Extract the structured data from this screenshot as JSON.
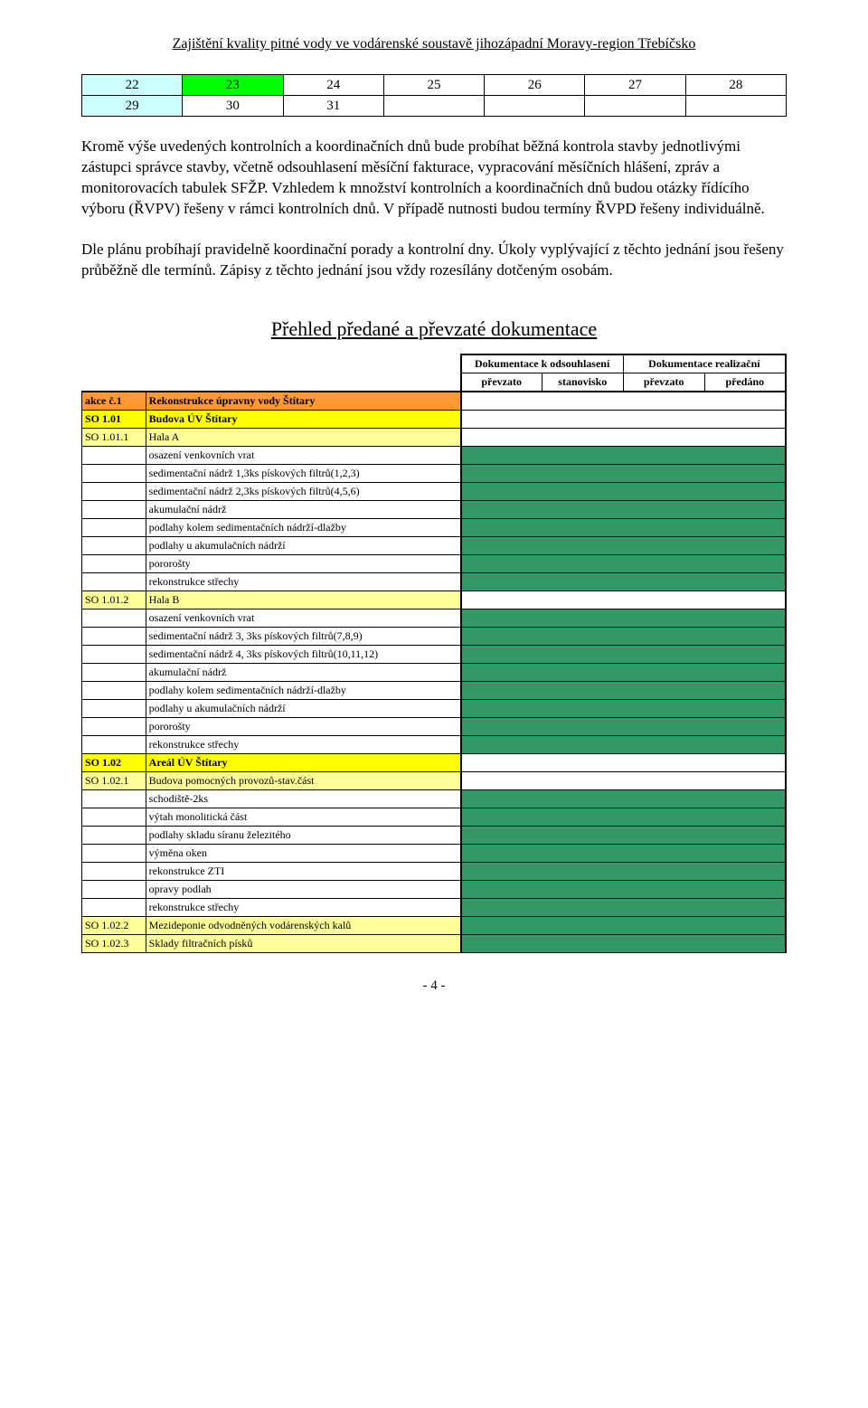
{
  "header": {
    "title": "Zajištění kvality pitné vody ve vodárenské soustavě jihozápadní Moravy-region Třebíčsko"
  },
  "calendar": {
    "rows": [
      {
        "cells": [
          "22",
          "23",
          "24",
          "25",
          "26",
          "27",
          "28"
        ],
        "bg": [
          "#ccffff",
          "#00ff00",
          "",
          "",
          "",
          "",
          ""
        ]
      },
      {
        "cells": [
          "29",
          "30",
          "31",
          "",
          "",
          "",
          ""
        ],
        "bg": [
          "#ccffff",
          "",
          "",
          "",
          "",
          "",
          ""
        ]
      }
    ]
  },
  "paragraphs": [
    "Kromě výše uvedených kontrolních a koordinačních dnů bude probíhat běžná kontrola stavby jednotlivými zástupci správce stavby, včetně odsouhlasení měsíční fakturace, vypracování měsíčních hlášení, zpráv a monitorovacích tabulek SFŽP. Vzhledem k množství kontrolních a koordinačních dnů budou otázky  řídícího výboru (ŘVPV) řešeny v rámci kontrolních dnů. V případě nutnosti budou termíny ŘVPD řešeny individuálně.",
    "Dle plánu probíhají pravidelně koordinační porady a kontrolní dny. Úkoly vyplývající z těchto jednání jsou řešeny průběžně dle termínů. Zápisy z těchto jednání jsou vždy rozesílány dotčeným osobám."
  ],
  "doc_section": {
    "title": "Přehled předané a převzaté dokumentace",
    "header_top": [
      "Dokumentace k odsouhlasení",
      "Dokumentace realizační"
    ],
    "header_sub": [
      "převzato",
      "stanovisko",
      "převzato",
      "předáno"
    ]
  },
  "rows": [
    {
      "code": "akce č.1",
      "name": "Rekonstrukce úpravny vody Štítary",
      "bg": "#ff9933",
      "status_bg": ""
    },
    {
      "code": "SO 1.01",
      "name": "Budova ÚV Štítary",
      "bg": "#ffff00",
      "status_bg": ""
    },
    {
      "code": "SO 1.01.1",
      "name": "Hala A",
      "bg": "#ffff99",
      "status_bg": ""
    },
    {
      "code": "",
      "name": "osazení venkovních vrat",
      "bg": "",
      "status_bg": "#339966"
    },
    {
      "code": "",
      "name": "sedimentační nádrž 1,3ks pískových filtrů(1,2,3)",
      "bg": "",
      "status_bg": "#339966"
    },
    {
      "code": "",
      "name": "sedimentační nádrž 2,3ks pískových filtrů(4,5,6)",
      "bg": "",
      "status_bg": "#339966"
    },
    {
      "code": "",
      "name": "akumulační nádrž",
      "bg": "",
      "status_bg": "#339966"
    },
    {
      "code": "",
      "name": "podlahy kolem sedimentačních nádrží-dlažby",
      "bg": "",
      "status_bg": "#339966"
    },
    {
      "code": "",
      "name": "podlahy u akumulačních nádrží",
      "bg": "",
      "status_bg": "#339966"
    },
    {
      "code": "",
      "name": "pororošty",
      "bg": "",
      "status_bg": "#339966"
    },
    {
      "code": "",
      "name": "rekonstrukce střechy",
      "bg": "",
      "status_bg": "#339966"
    },
    {
      "code": "SO 1.01.2",
      "name": "Hala B",
      "bg": "#ffff99",
      "status_bg": ""
    },
    {
      "code": "",
      "name": "osazení venkovních vrat",
      "bg": "",
      "status_bg": "#339966"
    },
    {
      "code": "",
      "name": "sedimentační nádrž 3, 3ks pískových filtrů(7,8,9)",
      "bg": "",
      "status_bg": "#339966"
    },
    {
      "code": "",
      "name": "sedimentační nádrž 4, 3ks pískových filtrů(10,11,12)",
      "bg": "",
      "status_bg": "#339966"
    },
    {
      "code": "",
      "name": "akumulační nádrž",
      "bg": "",
      "status_bg": "#339966"
    },
    {
      "code": "",
      "name": "podlahy kolem sedimentačních nádrží-dlažby",
      "bg": "",
      "status_bg": "#339966"
    },
    {
      "code": "",
      "name": "podlahy u akumulačních nádrží",
      "bg": "",
      "status_bg": "#339966"
    },
    {
      "code": "",
      "name": "pororošty",
      "bg": "",
      "status_bg": "#339966"
    },
    {
      "code": "",
      "name": "rekonstrukce střechy",
      "bg": "",
      "status_bg": "#339966"
    },
    {
      "code": "SO 1.02",
      "name": "Areál ÚV Štítary",
      "bg": "#ffff00",
      "status_bg": ""
    },
    {
      "code": "SO 1.02.1",
      "name": "Budova pomocných provozů-stav.část",
      "bg": "#ffff99",
      "status_bg": ""
    },
    {
      "code": "",
      "name": "schodiště-2ks",
      "bg": "",
      "status_bg": "#339966"
    },
    {
      "code": "",
      "name": "výtah monolitická část",
      "bg": "",
      "status_bg": "#339966"
    },
    {
      "code": "",
      "name": "podlahy skladu síranu železitého",
      "bg": "",
      "status_bg": "#339966"
    },
    {
      "code": "",
      "name": "výměna oken",
      "bg": "",
      "status_bg": "#339966"
    },
    {
      "code": "",
      "name": "rekonstrukce ZTI",
      "bg": "",
      "status_bg": "#339966"
    },
    {
      "code": "",
      "name": "opravy podlah",
      "bg": "",
      "status_bg": "#339966"
    },
    {
      "code": "",
      "name": "rekonstrukce střechy",
      "bg": "",
      "status_bg": "#339966"
    },
    {
      "code": "SO 1.02.2",
      "name": "Mezideponie odvodněných vodárenských kalů",
      "bg": "#ffff99",
      "status_bg": "#339966"
    },
    {
      "code": "SO 1.02.3",
      "name": "Sklady filtračních písků",
      "bg": "#ffff99",
      "status_bg": "#339966"
    }
  ],
  "footer": "- 4 -",
  "colors": {
    "orange": "#ff9933",
    "yellow": "#ffff00",
    "lightyellow": "#ffff99",
    "green": "#339966",
    "lightcyan": "#ccffff",
    "brightgreen": "#00ff00"
  }
}
